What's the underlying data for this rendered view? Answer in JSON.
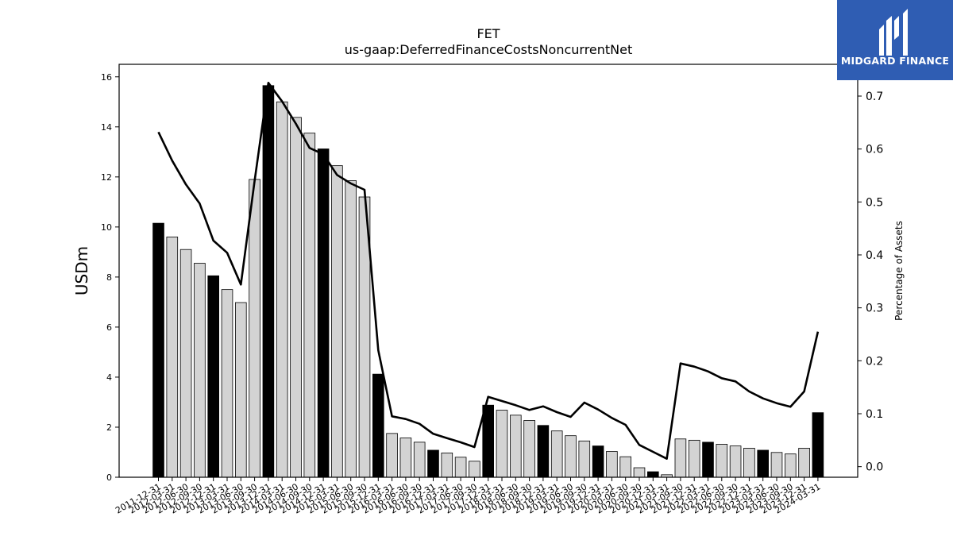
{
  "brand": {
    "name": "MIDGARD FINANCE",
    "logo_icon": "midgard-logo-icon",
    "color": "#2f5db3"
  },
  "chart_data": {
    "type": "bar",
    "title": "FET",
    "subtitle": "us-gaap:DeferredFinanceCostsNoncurrentNet",
    "ylabel": "USDm",
    "y2label": "Percentage of Assets",
    "ylim": [
      0,
      16.5
    ],
    "y2lim": [
      -0.02,
      0.76
    ],
    "yticks": [
      0,
      2,
      4,
      6,
      8,
      10,
      12,
      14,
      16
    ],
    "y2ticks": [
      0.0,
      0.1,
      0.2,
      0.3,
      0.4,
      0.5,
      0.6,
      0.7
    ],
    "grid": false,
    "categories": [
      "2011-12-31",
      "2012-03-31",
      "2012-06-30",
      "2012-09-30",
      "2012-12-31",
      "2013-03-31",
      "2013-06-30",
      "2013-09-30",
      "2013-12-31",
      "2014-03-31",
      "2014-06-30",
      "2014-09-30",
      "2014-12-31",
      "2015-03-31",
      "2015-06-30",
      "2015-09-30",
      "2015-12-31",
      "2016-03-31",
      "2016-06-30",
      "2016-09-30",
      "2016-12-31",
      "2017-03-31",
      "2017-06-30",
      "2017-09-30",
      "2017-12-31",
      "2018-03-31",
      "2018-06-30",
      "2018-09-30",
      "2018-12-31",
      "2019-03-31",
      "2019-06-30",
      "2019-09-30",
      "2019-12-31",
      "2020-03-31",
      "2020-06-30",
      "2020-09-30",
      "2020-12-31",
      "2021-03-31",
      "2021-09-30",
      "2021-12-31",
      "2022-03-31",
      "2022-06-30",
      "2022-09-30",
      "2022-12-31",
      "2023-03-31",
      "2023-06-30",
      "2023-09-30",
      "2023-12-31",
      "2024-03-31"
    ],
    "series": [
      {
        "type": "bar",
        "axis": "left",
        "values": [
          10.15,
          9.6,
          9.1,
          8.55,
          8.05,
          7.5,
          6.98,
          11.9,
          15.65,
          15.0,
          14.38,
          13.75,
          13.12,
          12.45,
          11.85,
          11.2,
          4.12,
          1.75,
          1.57,
          1.4,
          1.08,
          0.97,
          0.8,
          0.64,
          2.88,
          2.68,
          2.48,
          2.27,
          2.07,
          1.85,
          1.66,
          1.45,
          1.25,
          1.03,
          0.82,
          0.38,
          0.22,
          0.1,
          1.53,
          1.48,
          1.4,
          1.32,
          1.25,
          1.16,
          1.08,
          0.99,
          0.93,
          1.16,
          2.58
        ],
        "highlight_color": "#000000",
        "color": "#d3d3d3"
      },
      {
        "type": "line",
        "axis": "right",
        "values": [
          0.632,
          0.578,
          0.533,
          0.497,
          0.427,
          0.404,
          0.344,
          0.54,
          0.725,
          0.69,
          0.648,
          0.602,
          0.59,
          0.551,
          0.535,
          0.523,
          0.22,
          0.095,
          0.09,
          0.081,
          0.062,
          0.054,
          0.046,
          0.037,
          0.132,
          0.124,
          0.116,
          0.107,
          0.114,
          0.103,
          0.094,
          0.121,
          0.108,
          0.092,
          0.079,
          0.041,
          0.028,
          0.015,
          0.195,
          0.189,
          0.18,
          0.167,
          0.161,
          0.142,
          0.129,
          0.12,
          0.113,
          0.142,
          0.255
        ],
        "color": "#000000"
      }
    ],
    "highlight_pattern": "every 4th bar (December year-end) filled black"
  }
}
